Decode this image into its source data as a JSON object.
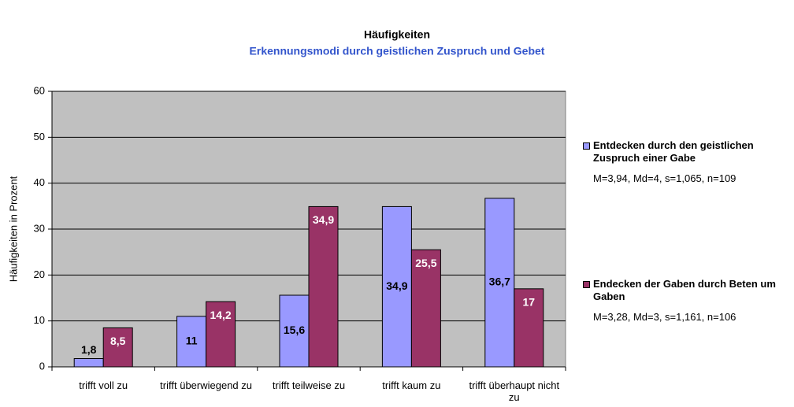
{
  "chart_data": {
    "type": "bar",
    "title": "Häufigkeiten",
    "subtitle": "Erkennungsmodi durch geistlichen Zuspruch und Gebet",
    "y_label": "Häufigkeiten in Prozent",
    "categories": [
      "trifft voll zu",
      "trifft überwiegend zu",
      "trifft teilweise zu",
      "trifft kaum zu",
      "trifft überhaupt nicht zu"
    ],
    "series": [
      {
        "name": "Entdecken durch den geistlichen Zuspruch einer Gabe",
        "note": "M=3,94, Md=4, s=1,065, n=109",
        "color": "#9999ff",
        "values": [
          1.8,
          11,
          15.6,
          34.9,
          36.7
        ],
        "value_labels": [
          "1,8",
          "11",
          "15,6",
          "34,9",
          "36,7"
        ]
      },
      {
        "name": "Endecken der Gaben durch Beten um Gaben",
        "note": "M=3,28, Md=3, s=1,161, n=106",
        "color": "#993366",
        "values": [
          8.5,
          14.2,
          34.9,
          25.5,
          17
        ],
        "value_labels": [
          "8,5",
          "14,2",
          "34,9",
          "25,5",
          "17"
        ]
      }
    ],
    "ylim": [
      0,
      60
    ],
    "yticks": [
      0,
      10,
      20,
      30,
      40,
      50,
      60
    ],
    "grid": true,
    "legend": "right"
  }
}
